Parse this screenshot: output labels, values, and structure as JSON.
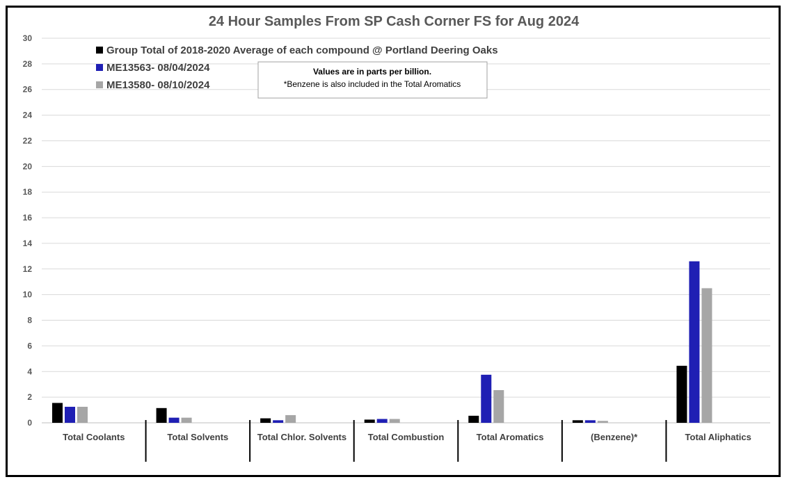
{
  "chart_data": {
    "type": "bar",
    "title": "24 Hour Samples From SP Cash Corner FS for Aug 2024",
    "xlabel": "",
    "ylabel": "",
    "ylim": [
      0,
      30
    ],
    "yticks": [
      0,
      2,
      4,
      6,
      8,
      10,
      12,
      14,
      16,
      18,
      20,
      22,
      24,
      26,
      28,
      30
    ],
    "grid": true,
    "legend_position": "top-left",
    "categories": [
      "Total Coolants",
      "Total Solvents",
      "Total Chlor. Solvents",
      "Total Combustion",
      "Total Aromatics",
      "(Benzene)*",
      "Total Aliphatics"
    ],
    "series": [
      {
        "name": "Group Total of 2018-2020 Average of each compound @ Portland Deering Oaks",
        "color": "#000000",
        "values": [
          1.55,
          1.15,
          0.35,
          0.25,
          0.55,
          0.2,
          4.45
        ]
      },
      {
        "name": "ME13563- 08/04/2024",
        "color": "#1f1fb4",
        "values": [
          1.25,
          0.4,
          0.2,
          0.3,
          3.75,
          0.2,
          12.6
        ]
      },
      {
        "name": "ME13580- 08/10/2024",
        "color": "#a6a6a6",
        "values": [
          1.25,
          0.4,
          0.6,
          0.3,
          2.55,
          0.15,
          10.5
        ]
      }
    ],
    "annotation": {
      "line1": "Values are in parts per billion.",
      "line2": "*Benzene is also included in the Total Aromatics"
    }
  }
}
